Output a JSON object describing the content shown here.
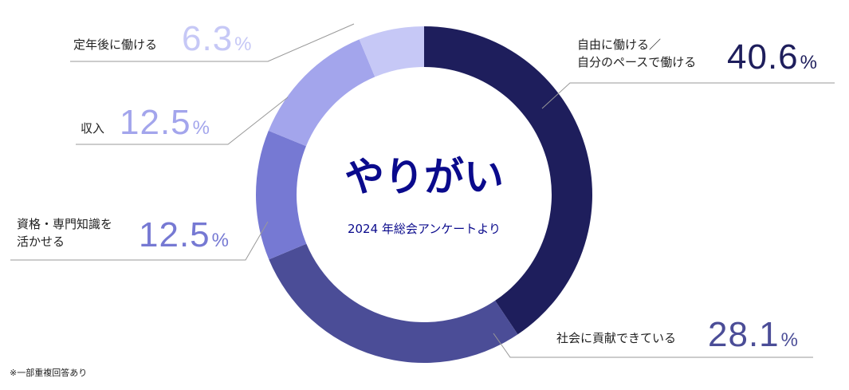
{
  "chart_data": {
    "type": "pie",
    "title": "やりがい",
    "subtitle": "2024 年総会アンケートより",
    "note": "※一部重複回答あり",
    "unit": "%",
    "slices": [
      {
        "label": "自由に働ける／",
        "label2": "自分のペースで働ける",
        "value": 40.6,
        "value_text": "40.6",
        "color": "#1e1e5c"
      },
      {
        "label": "社会に貢献できている",
        "value": 28.1,
        "value_text": "28.1",
        "color": "#4b4d97"
      },
      {
        "label": "資格・専門知識を",
        "label2": "活かせる",
        "value": 12.5,
        "value_text": "12.5",
        "color": "#7679d3"
      },
      {
        "label": "収入",
        "value": 12.5,
        "value_text": "12.5",
        "color": "#a3a5ec"
      },
      {
        "label": "定年後に働ける",
        "value": 6.3,
        "value_text": "6.3",
        "color": "#c6c8f6"
      }
    ]
  }
}
